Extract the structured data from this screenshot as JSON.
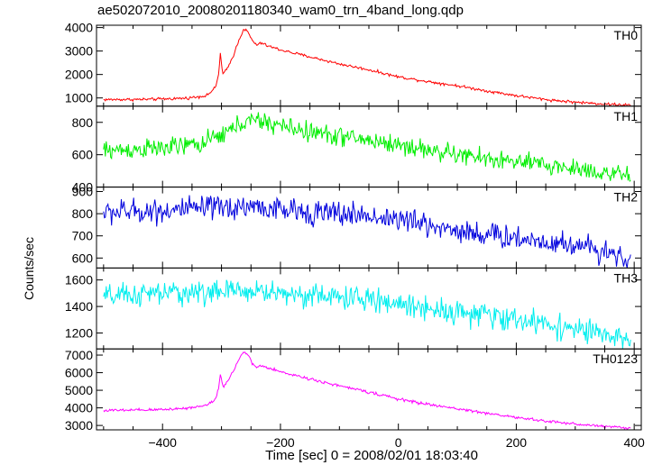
{
  "figure": {
    "title": "ae502072010_20080201180340_wam0_trn_4band_long.qdp",
    "xlabel": "Time [sec] 0 = 2008/02/01 18:03:40",
    "ylabel": "Counts/sec"
  },
  "chart_data": [
    {
      "type": "line",
      "name": "TH0",
      "color": "#ff0000",
      "xlim": [
        -512,
        412
      ],
      "ylim": [
        650,
        4100
      ],
      "yticks": [
        1000,
        2000,
        3000,
        4000
      ],
      "xticks": [
        -400,
        -200,
        0,
        200,
        400
      ],
      "noise": 30,
      "anchors": [
        [
          -500,
          930
        ],
        [
          -420,
          940
        ],
        [
          -360,
          990
        ],
        [
          -325,
          1100
        ],
        [
          -310,
          1450
        ],
        [
          -305,
          2000
        ],
        [
          -302,
          2900
        ],
        [
          -298,
          2000
        ],
        [
          -290,
          2250
        ],
        [
          -280,
          2800
        ],
        [
          -270,
          3500
        ],
        [
          -262,
          3950
        ],
        [
          -255,
          3800
        ],
        [
          -248,
          3450
        ],
        [
          -240,
          3250
        ],
        [
          -232,
          3350
        ],
        [
          -225,
          3250
        ],
        [
          -200,
          3050
        ],
        [
          -150,
          2750
        ],
        [
          -100,
          2450
        ],
        [
          -50,
          2200
        ],
        [
          0,
          1900
        ],
        [
          50,
          1700
        ],
        [
          100,
          1520
        ],
        [
          150,
          1300
        ],
        [
          200,
          1100
        ],
        [
          250,
          930
        ],
        [
          300,
          820
        ],
        [
          350,
          740
        ],
        [
          395,
          690
        ]
      ]
    },
    {
      "type": "line",
      "name": "TH1",
      "color": "#00ee00",
      "xlim": [
        -512,
        412
      ],
      "ylim": [
        400,
        900
      ],
      "yticks": [
        400,
        600,
        800
      ],
      "xticks": [
        -400,
        -200,
        0,
        200,
        400
      ],
      "noise": 30,
      "anchors": [
        [
          -500,
          625
        ],
        [
          -400,
          640
        ],
        [
          -330,
          670
        ],
        [
          -290,
          740
        ],
        [
          -265,
          800
        ],
        [
          -240,
          810
        ],
        [
          -200,
          780
        ],
        [
          -150,
          740
        ],
        [
          -100,
          715
        ],
        [
          -50,
          690
        ],
        [
          0,
          660
        ],
        [
          50,
          630
        ],
        [
          100,
          600
        ],
        [
          150,
          575
        ],
        [
          200,
          555
        ],
        [
          250,
          535
        ],
        [
          300,
          515
        ],
        [
          350,
          490
        ],
        [
          395,
          460
        ]
      ]
    },
    {
      "type": "line",
      "name": "TH2",
      "color": "#0000dd",
      "xlim": [
        -512,
        412
      ],
      "ylim": [
        555,
        920
      ],
      "yticks": [
        600,
        700,
        800,
        900
      ],
      "xticks": [
        -400,
        -200,
        0,
        200,
        400
      ],
      "noise": 28,
      "anchors": [
        [
          -500,
          805
        ],
        [
          -400,
          815
        ],
        [
          -300,
          825
        ],
        [
          -250,
          835
        ],
        [
          -200,
          815
        ],
        [
          -100,
          800
        ],
        [
          -50,
          790
        ],
        [
          0,
          775
        ],
        [
          50,
          750
        ],
        [
          100,
          725
        ],
        [
          150,
          705
        ],
        [
          200,
          690
        ],
        [
          250,
          675
        ],
        [
          300,
          660
        ],
        [
          350,
          635
        ],
        [
          395,
          590
        ]
      ]
    },
    {
      "type": "line",
      "name": "TH3",
      "color": "#00eeee",
      "xlim": [
        -512,
        412
      ],
      "ylim": [
        1080,
        1690
      ],
      "yticks": [
        1200,
        1400,
        1600
      ],
      "xticks": [
        -400,
        -200,
        0,
        200,
        400
      ],
      "noise": 45,
      "anchors": [
        [
          -500,
          1470
        ],
        [
          -400,
          1500
        ],
        [
          -300,
          1510
        ],
        [
          -250,
          1520
        ],
        [
          -200,
          1500
        ],
        [
          -100,
          1470
        ],
        [
          -50,
          1450
        ],
        [
          0,
          1420
        ],
        [
          50,
          1390
        ],
        [
          100,
          1360
        ],
        [
          150,
          1330
        ],
        [
          200,
          1300
        ],
        [
          250,
          1270
        ],
        [
          300,
          1230
        ],
        [
          350,
          1180
        ],
        [
          395,
          1130
        ]
      ]
    },
    {
      "type": "line",
      "name": "TH0123",
      "color": "#ff00ff",
      "xlim": [
        -512,
        412
      ],
      "ylim": [
        2750,
        7350
      ],
      "yticks": [
        3000,
        4000,
        5000,
        6000,
        7000
      ],
      "xticks": [
        -400,
        -200,
        0,
        200,
        400
      ],
      "noise": 40,
      "anchors": [
        [
          -500,
          3850
        ],
        [
          -420,
          3880
        ],
        [
          -360,
          3980
        ],
        [
          -325,
          4150
        ],
        [
          -310,
          4500
        ],
        [
          -305,
          5100
        ],
        [
          -302,
          5950
        ],
        [
          -298,
          5200
        ],
        [
          -290,
          5500
        ],
        [
          -280,
          6100
        ],
        [
          -270,
          6800
        ],
        [
          -262,
          7200
        ],
        [
          -255,
          7000
        ],
        [
          -248,
          6500
        ],
        [
          -240,
          6300
        ],
        [
          -232,
          6400
        ],
        [
          -225,
          6300
        ],
        [
          -200,
          6050
        ],
        [
          -150,
          5650
        ],
        [
          -100,
          5250
        ],
        [
          -50,
          4900
        ],
        [
          0,
          4500
        ],
        [
          50,
          4200
        ],
        [
          100,
          3950
        ],
        [
          150,
          3700
        ],
        [
          200,
          3450
        ],
        [
          250,
          3250
        ],
        [
          300,
          3080
        ],
        [
          350,
          2950
        ],
        [
          395,
          2850
        ]
      ]
    }
  ]
}
